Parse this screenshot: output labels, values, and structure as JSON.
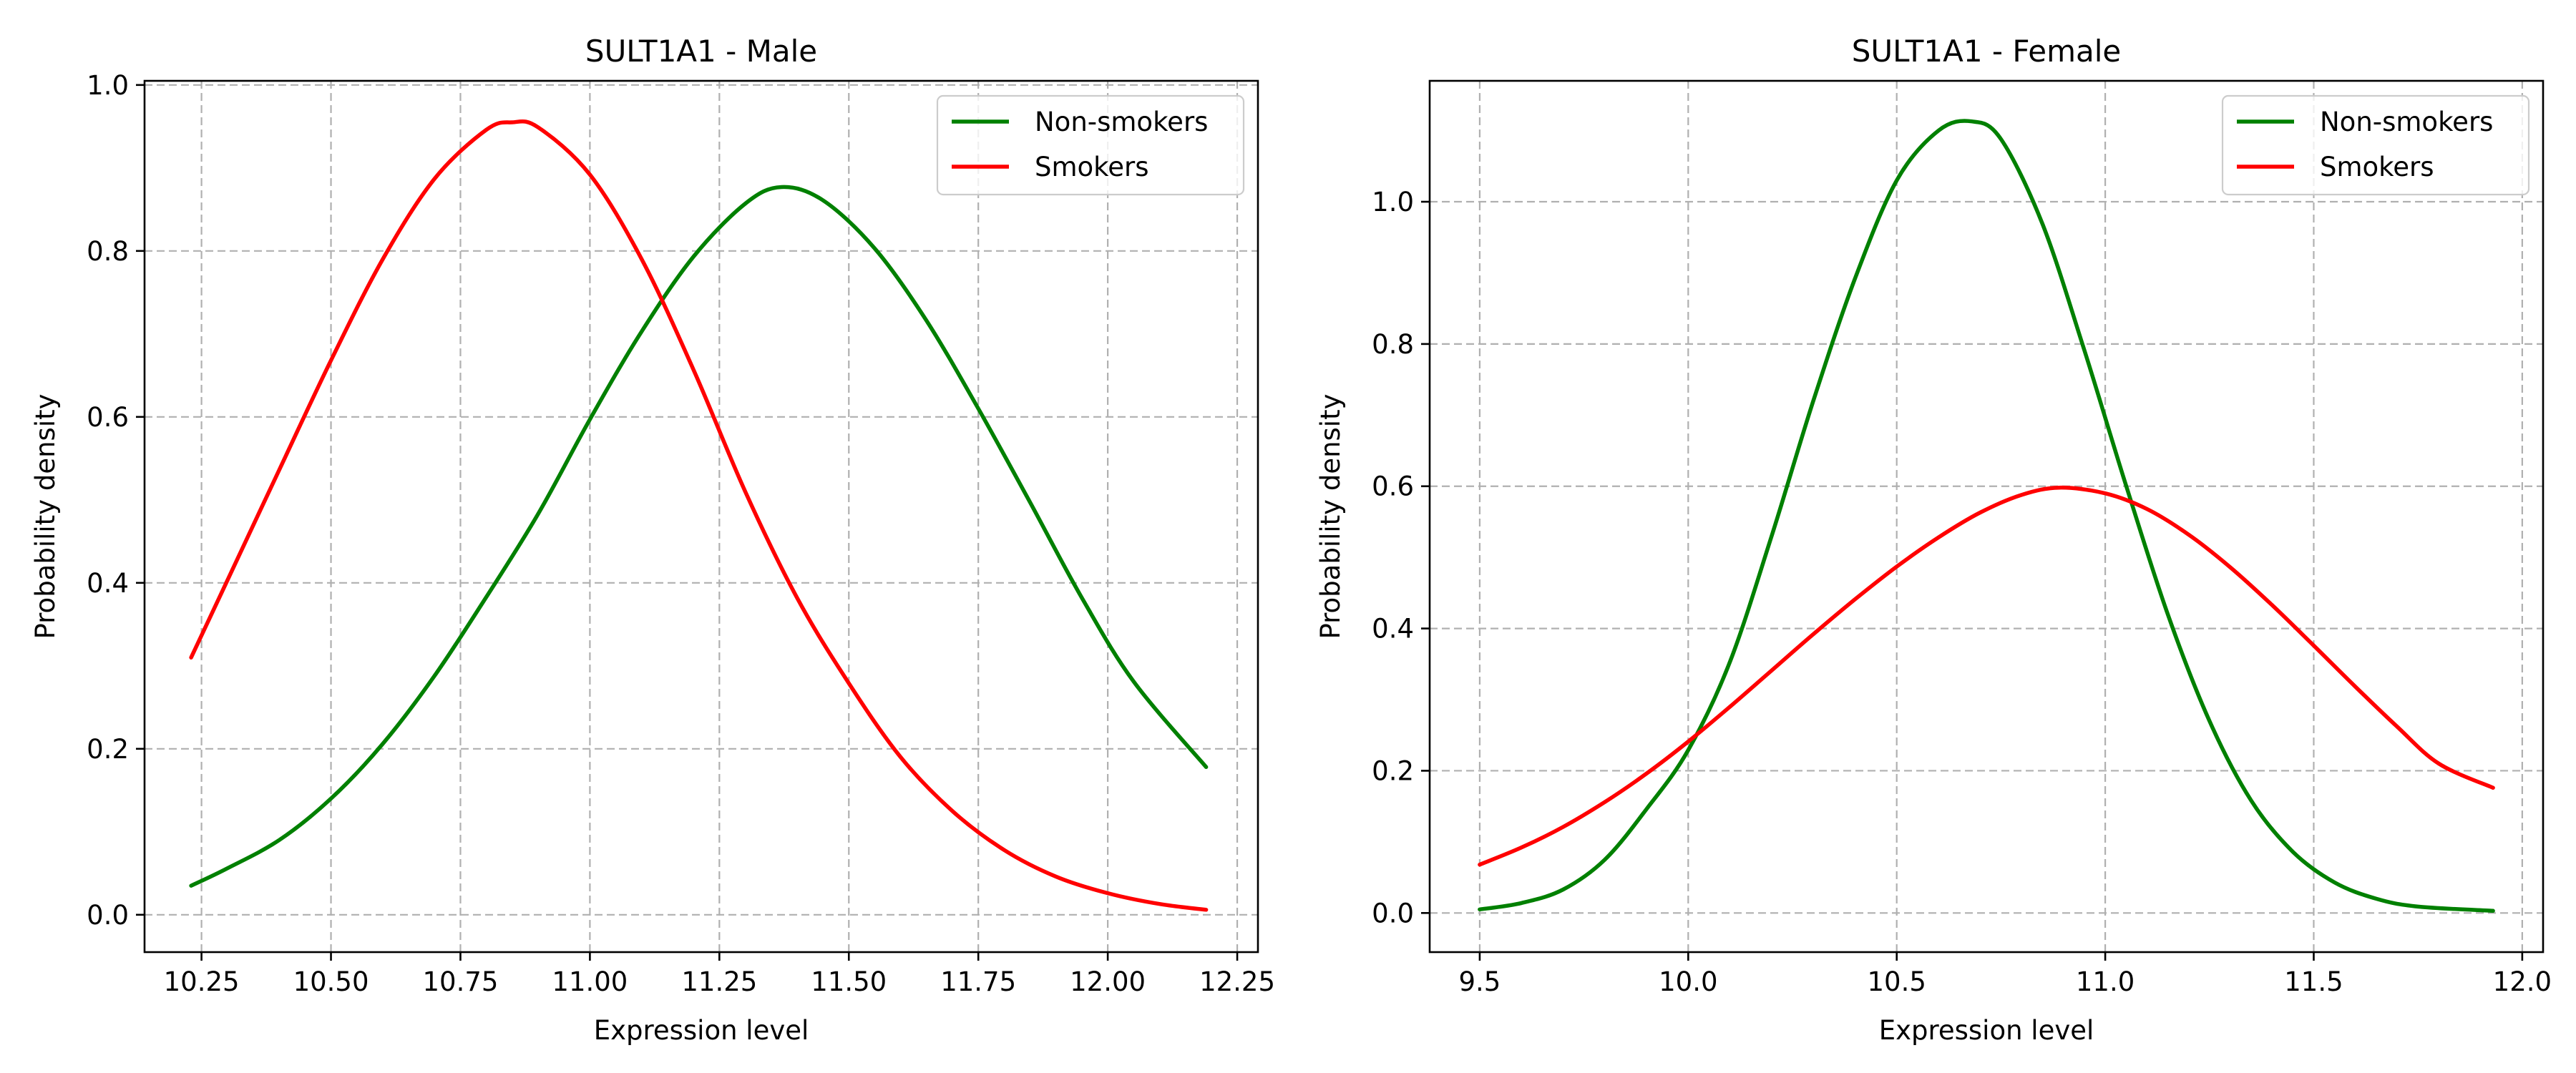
{
  "chart_data": [
    {
      "type": "line",
      "title": "SULT1A1 - Male",
      "xlabel": "Expression level",
      "ylabel": "Probability density",
      "xlim": [
        10.14,
        12.29
      ],
      "ylim": [
        -0.045,
        1.005
      ],
      "xticks": [
        10.25,
        10.5,
        10.75,
        11.0,
        11.25,
        11.5,
        11.75,
        12.0,
        12.25
      ],
      "xtick_labels": [
        "10.25",
        "10.50",
        "10.75",
        "11.00",
        "11.25",
        "11.50",
        "11.75",
        "12.00",
        "12.25"
      ],
      "yticks": [
        0.0,
        0.2,
        0.4,
        0.6,
        0.8,
        1.0
      ],
      "ytick_labels": [
        "0.0",
        "0.2",
        "0.4",
        "0.6",
        "0.8",
        "1.0"
      ],
      "grid": true,
      "legend_position": "top-right",
      "series": [
        {
          "name": "Non-smokers",
          "color": "#008000",
          "x": [
            10.23,
            10.3,
            10.4,
            10.5,
            10.6,
            10.7,
            10.8,
            10.9,
            11.0,
            11.1,
            11.2,
            11.3,
            11.37,
            11.45,
            11.55,
            11.65,
            11.75,
            11.85,
            11.95,
            12.05,
            12.19
          ],
          "y": [
            0.035,
            0.056,
            0.09,
            0.14,
            0.206,
            0.288,
            0.383,
            0.483,
            0.597,
            0.703,
            0.793,
            0.857,
            0.877,
            0.861,
            0.803,
            0.716,
            0.61,
            0.497,
            0.382,
            0.281,
            0.178
          ]
        },
        {
          "name": "Smokers",
          "color": "#ff0000",
          "x": [
            10.23,
            10.3,
            10.4,
            10.5,
            10.6,
            10.7,
            10.8,
            10.85,
            10.9,
            11.0,
            11.1,
            11.2,
            11.3,
            11.4,
            11.5,
            11.6,
            11.7,
            11.8,
            11.9,
            12.0,
            12.1,
            12.19
          ],
          "y": [
            0.31,
            0.403,
            0.536,
            0.668,
            0.79,
            0.887,
            0.946,
            0.955,
            0.949,
            0.892,
            0.79,
            0.657,
            0.51,
            0.382,
            0.279,
            0.19,
            0.125,
            0.078,
            0.046,
            0.026,
            0.013,
            0.006
          ]
        }
      ]
    },
    {
      "type": "line",
      "title": "SULT1A1 - Female",
      "xlabel": "Expression level",
      "ylabel": "Probability density",
      "xlim": [
        9.38,
        12.05
      ],
      "ylim": [
        -0.055,
        1.17
      ],
      "xticks": [
        9.5,
        10.0,
        10.5,
        11.0,
        11.5,
        12.0
      ],
      "xtick_labels": [
        "9.5",
        "10.0",
        "10.5",
        "11.0",
        "11.5",
        "12.0"
      ],
      "yticks": [
        0.0,
        0.2,
        0.4,
        0.6,
        0.8,
        1.0
      ],
      "ytick_labels": [
        "0.0",
        "0.2",
        "0.4",
        "0.6",
        "0.8",
        "1.0"
      ],
      "grid": true,
      "legend_position": "top-right",
      "series": [
        {
          "name": "Non-smokers",
          "color": "#008000",
          "x": [
            9.5,
            9.6,
            9.7,
            9.8,
            9.9,
            10.0,
            10.1,
            10.2,
            10.3,
            10.4,
            10.5,
            10.6,
            10.68,
            10.75,
            10.85,
            10.95,
            11.05,
            11.15,
            11.25,
            11.35,
            11.45,
            11.55,
            11.65,
            11.75,
            11.93
          ],
          "y": [
            0.005,
            0.014,
            0.033,
            0.075,
            0.146,
            0.229,
            0.353,
            0.53,
            0.72,
            0.892,
            1.03,
            1.1,
            1.113,
            1.088,
            0.968,
            0.791,
            0.601,
            0.42,
            0.27,
            0.158,
            0.086,
            0.043,
            0.02,
            0.009,
            0.003
          ]
        },
        {
          "name": "Smokers",
          "color": "#ff0000",
          "x": [
            9.5,
            9.6,
            9.7,
            9.8,
            9.9,
            10.0,
            10.1,
            10.2,
            10.3,
            10.4,
            10.5,
            10.6,
            10.7,
            10.8,
            10.89,
            11.0,
            11.1,
            11.2,
            11.3,
            11.4,
            11.5,
            11.6,
            11.7,
            11.8,
            11.93
          ],
          "y": [
            0.068,
            0.092,
            0.121,
            0.156,
            0.196,
            0.241,
            0.29,
            0.341,
            0.392,
            0.441,
            0.487,
            0.528,
            0.563,
            0.588,
            0.598,
            0.59,
            0.568,
            0.532,
            0.486,
            0.433,
            0.376,
            0.318,
            0.262,
            0.21,
            0.176
          ]
        }
      ]
    }
  ]
}
